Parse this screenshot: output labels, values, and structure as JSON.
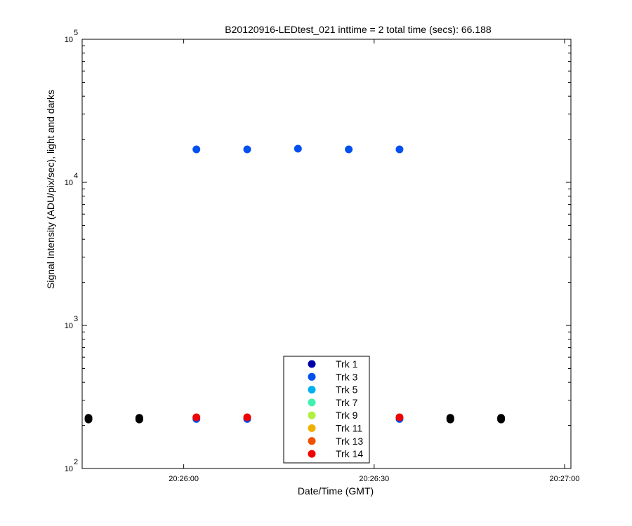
{
  "chart_data": {
    "type": "scatter",
    "title": "B20120916-LEDtest_021 inttime = 2 total time (secs): 66.188",
    "xlabel": "Date/Time (GMT)",
    "ylabel": "Signal Intensity (ADU/pix/sec), light and darks",
    "y_scale": "log",
    "ylim": [
      100,
      100000
    ],
    "xlim": [
      "20:25:44",
      "20:27:01"
    ],
    "x_ticks": [
      {
        "t": "20:26:00",
        "label": "20:26:00"
      },
      {
        "t": "20:26:30",
        "label": "20:26:30"
      },
      {
        "t": "20:27:00",
        "label": "20:27:00"
      }
    ],
    "y_ticks": [
      {
        "value": 100,
        "base": "10",
        "exp": "2"
      },
      {
        "value": 1000,
        "base": "10",
        "exp": "3"
      },
      {
        "value": 10000,
        "base": "10",
        "exp": "4"
      },
      {
        "value": 100000,
        "base": "10",
        "exp": "5"
      }
    ],
    "legend_placement": "bottom-center",
    "grid": false,
    "series": [
      {
        "name": "Trk 1",
        "color": "#0000a8",
        "points": []
      },
      {
        "name": "Trk 3",
        "color": "#0050f0",
        "points": [
          {
            "t": "20:26:02",
            "y": 17000
          },
          {
            "t": "20:26:10",
            "y": 17000
          },
          {
            "t": "20:26:18",
            "y": 17200
          },
          {
            "t": "20:26:26",
            "y": 17000
          },
          {
            "t": "20:26:34",
            "y": 17000
          },
          {
            "t": "20:26:02",
            "y": 222
          },
          {
            "t": "20:26:10",
            "y": 222
          },
          {
            "t": "20:26:34",
            "y": 222
          }
        ]
      },
      {
        "name": "Trk 5",
        "color": "#00b0f0",
        "points": []
      },
      {
        "name": "Trk 7",
        "color": "#40f0b0",
        "points": []
      },
      {
        "name": "Trk 9",
        "color": "#b0f040",
        "points": []
      },
      {
        "name": "Trk 11",
        "color": "#f0b000",
        "points": []
      },
      {
        "name": "Trk 13",
        "color": "#f05000",
        "points": []
      },
      {
        "name": "Trk 14",
        "color": "#f00000",
        "points": [
          {
            "t": "20:26:02",
            "y": 228
          },
          {
            "t": "20:26:10",
            "y": 228
          },
          {
            "t": "20:26:34",
            "y": 228
          }
        ]
      },
      {
        "color": "#000000",
        "points": [
          {
            "t": "20:25:45",
            "y": 220
          },
          {
            "t": "20:25:45",
            "y": 226
          },
          {
            "t": "20:25:53",
            "y": 220
          },
          {
            "t": "20:25:53",
            "y": 226
          },
          {
            "t": "20:26:42",
            "y": 220
          },
          {
            "t": "20:26:42",
            "y": 226
          },
          {
            "t": "20:26:50",
            "y": 220
          },
          {
            "t": "20:26:50",
            "y": 226
          }
        ]
      }
    ]
  }
}
